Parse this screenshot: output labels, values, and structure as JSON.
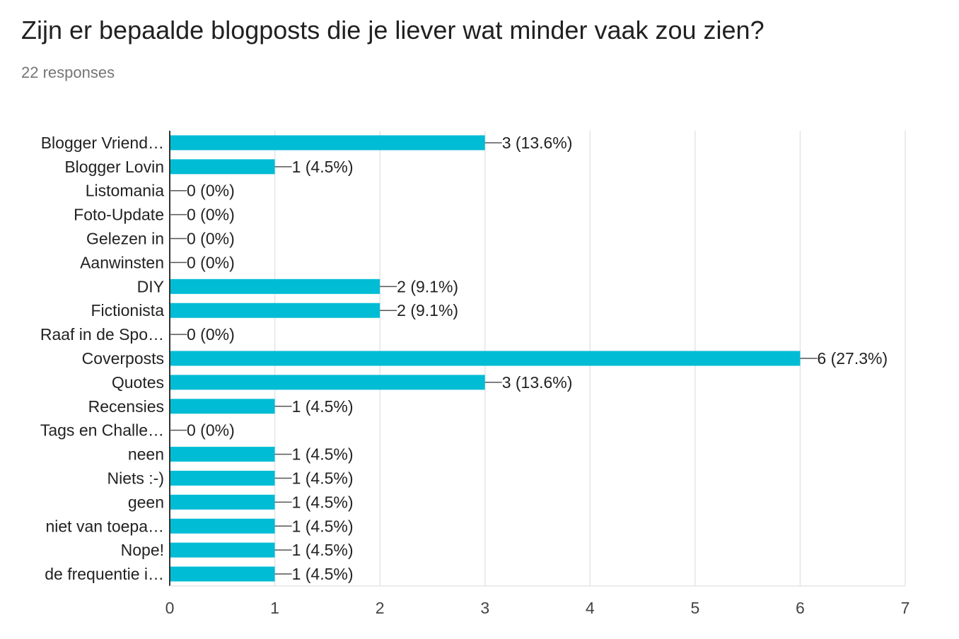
{
  "header": {
    "title": "Zijn er bepaalde blogposts die je liever wat minder vaak zou zien?",
    "subtitle": "22 responses"
  },
  "colors": {
    "bar": "#00bcd4",
    "grid": "#e5e5e5",
    "axis": "#333333",
    "connector": "#555555"
  },
  "chart_data": {
    "type": "bar",
    "orientation": "horizontal",
    "categories": [
      "Blogger Vriend…",
      "Blogger Lovin",
      "Listomania",
      "Foto-Update",
      "Gelezen in",
      "Aanwinsten",
      "DIY",
      "Fictionista",
      "Raaf in de Spo…",
      "Coverposts",
      "Quotes",
      "Recensies",
      "Tags en Challe…",
      "neen",
      "Niets :-)",
      "geen",
      "niet van toepa…",
      "Nope!",
      "de frequentie i…"
    ],
    "values": [
      3,
      1,
      0,
      0,
      0,
      0,
      2,
      2,
      0,
      6,
      3,
      1,
      0,
      1,
      1,
      1,
      1,
      1,
      1
    ],
    "data_labels": [
      "3 (13.6%)",
      "1 (4.5%)",
      "0 (0%)",
      "0 (0%)",
      "0 (0%)",
      "0 (0%)",
      "2 (9.1%)",
      "2 (9.1%)",
      "0 (0%)",
      "6 (27.3%)",
      "3 (13.6%)",
      "1 (4.5%)",
      "0 (0%)",
      "1 (4.5%)",
      "1 (4.5%)",
      "1 (4.5%)",
      "1 (4.5%)",
      "1 (4.5%)",
      "1 (4.5%)"
    ],
    "xlim": [
      0,
      7
    ],
    "xticks": [
      "0",
      "1",
      "2",
      "3",
      "4",
      "5",
      "6",
      "7"
    ],
    "grid": true,
    "legend": "none"
  }
}
